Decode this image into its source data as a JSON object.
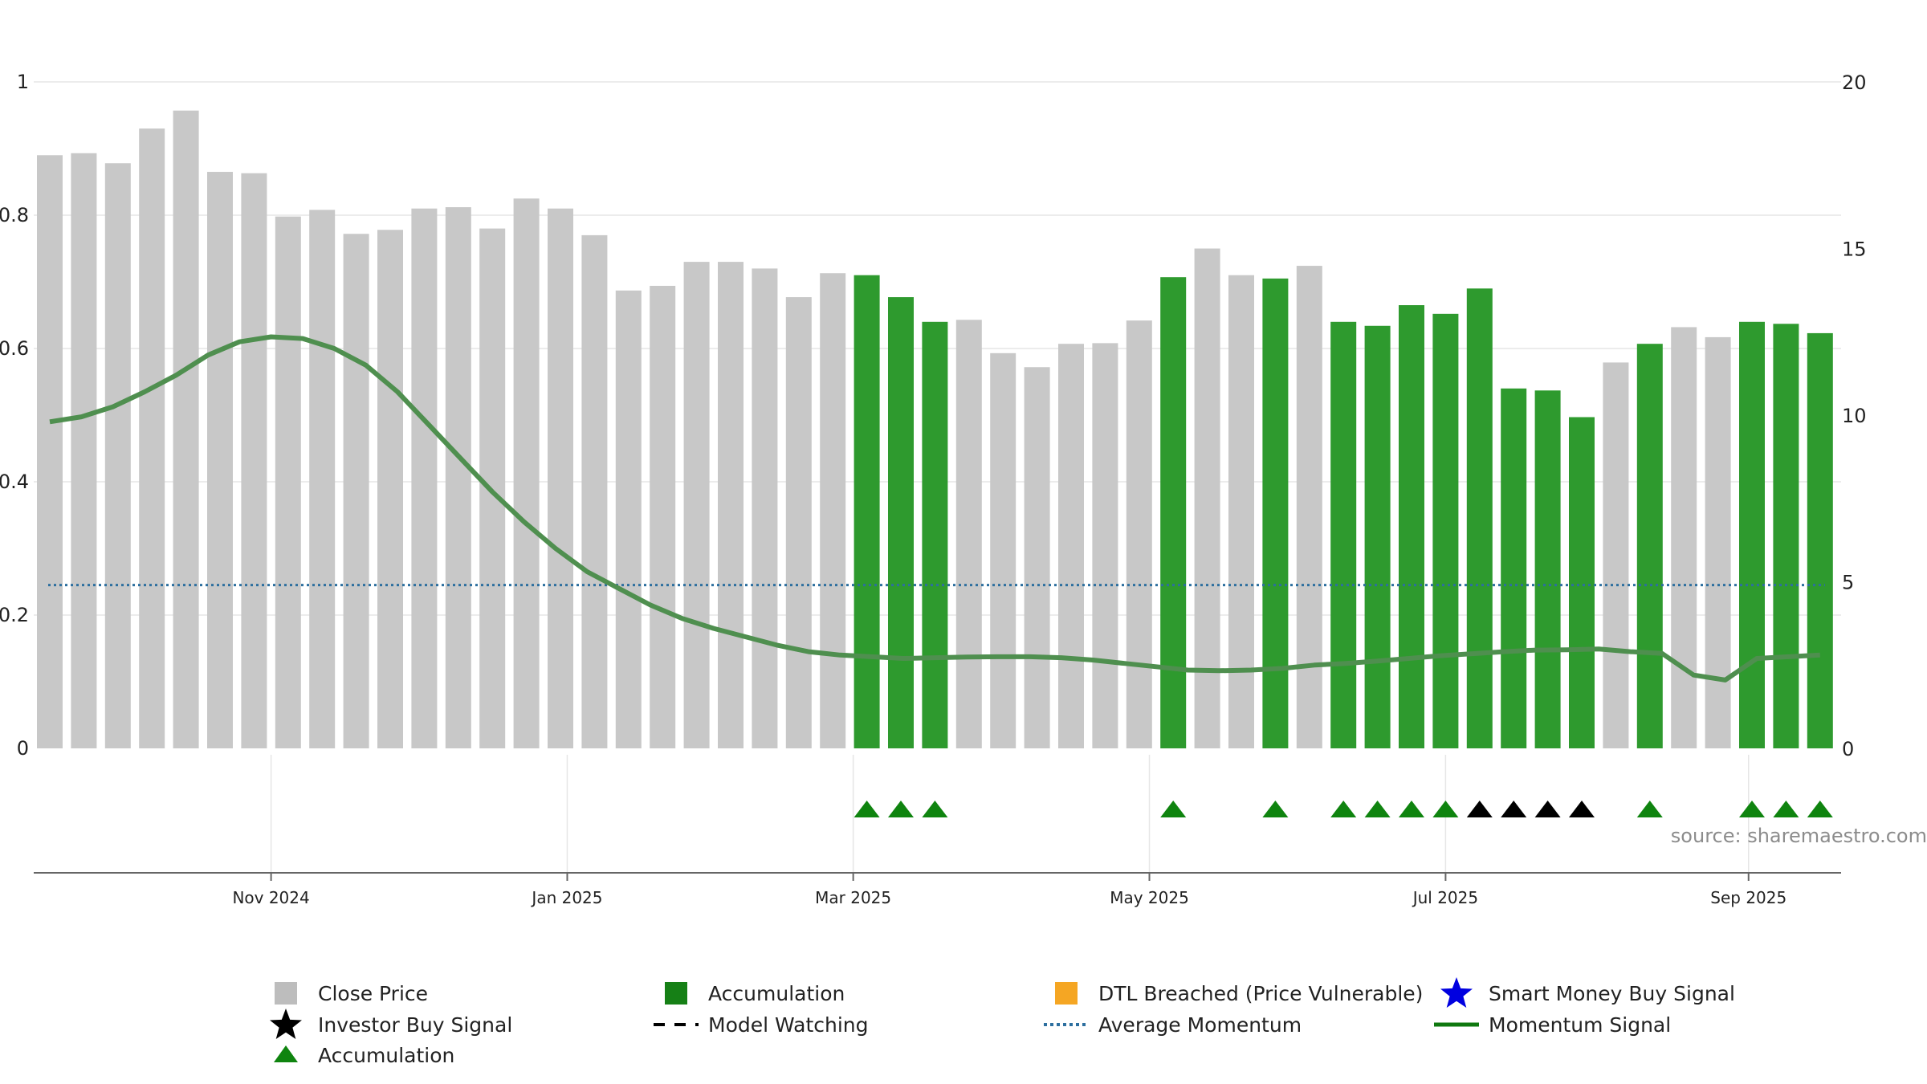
{
  "chart_data": {
    "type": "bar",
    "colors": {
      "close_bar": "#c8c8c8",
      "accumulation_bar": "#2e9a2e",
      "momentum_line": "#4f8f4f",
      "average_momentum": "#2d6f9f",
      "marker_green": "#0f840f",
      "marker_black": "#000000",
      "legend_close": "#bdbdbd",
      "legend_accum": "#168016",
      "legend_dtl": "#f5a623",
      "legend_star_blue": "#0000e0",
      "legend_momentum": "#0f780f",
      "axis": "#222222",
      "grid": "#e6e6e6",
      "source_text": "#8c8c8c"
    },
    "left_axis": {
      "ylim": [
        0,
        1
      ],
      "ticks": [
        0,
        0.2,
        0.4,
        0.6,
        0.8,
        1
      ],
      "tick_labels": [
        "0",
        "0.2",
        "0.4",
        "0.6",
        "0.8",
        "1"
      ]
    },
    "right_axis": {
      "ylim": [
        0,
        20
      ],
      "ticks": [
        0,
        5,
        10,
        15,
        20
      ],
      "tick_labels": [
        "0",
        "5",
        "10",
        "15",
        "20"
      ]
    },
    "x_ticks": [
      {
        "label": "Nov 2024",
        "index": 6.5
      },
      {
        "label": "Jan 2025",
        "index": 15.2
      },
      {
        "label": "Mar 2025",
        "index": 23.6
      },
      {
        "label": "May 2025",
        "index": 32.3
      },
      {
        "label": "Jul 2025",
        "index": 41.0
      },
      {
        "label": "Sep 2025",
        "index": 49.9
      }
    ],
    "bars": [
      {
        "value": 0.89,
        "accum": false
      },
      {
        "value": 0.893,
        "accum": false
      },
      {
        "value": 0.878,
        "accum": false
      },
      {
        "value": 0.93,
        "accum": false
      },
      {
        "value": 0.957,
        "accum": false
      },
      {
        "value": 0.865,
        "accum": false
      },
      {
        "value": 0.863,
        "accum": false
      },
      {
        "value": 0.798,
        "accum": false
      },
      {
        "value": 0.808,
        "accum": false
      },
      {
        "value": 0.772,
        "accum": false
      },
      {
        "value": 0.778,
        "accum": false
      },
      {
        "value": 0.81,
        "accum": false
      },
      {
        "value": 0.812,
        "accum": false
      },
      {
        "value": 0.78,
        "accum": false
      },
      {
        "value": 0.825,
        "accum": false
      },
      {
        "value": 0.81,
        "accum": false
      },
      {
        "value": 0.77,
        "accum": false
      },
      {
        "value": 0.687,
        "accum": false
      },
      {
        "value": 0.694,
        "accum": false
      },
      {
        "value": 0.73,
        "accum": false
      },
      {
        "value": 0.73,
        "accum": false
      },
      {
        "value": 0.72,
        "accum": false
      },
      {
        "value": 0.677,
        "accum": false
      },
      {
        "value": 0.713,
        "accum": false
      },
      {
        "value": 0.71,
        "accum": true
      },
      {
        "value": 0.677,
        "accum": true
      },
      {
        "value": 0.64,
        "accum": true
      },
      {
        "value": 0.643,
        "accum": false
      },
      {
        "value": 0.593,
        "accum": false
      },
      {
        "value": 0.572,
        "accum": false
      },
      {
        "value": 0.607,
        "accum": false
      },
      {
        "value": 0.608,
        "accum": false
      },
      {
        "value": 0.642,
        "accum": false
      },
      {
        "value": 0.707,
        "accum": true
      },
      {
        "value": 0.75,
        "accum": false
      },
      {
        "value": 0.71,
        "accum": false
      },
      {
        "value": 0.705,
        "accum": true
      },
      {
        "value": 0.724,
        "accum": false
      },
      {
        "value": 0.64,
        "accum": true
      },
      {
        "value": 0.634,
        "accum": true
      },
      {
        "value": 0.665,
        "accum": true
      },
      {
        "value": 0.652,
        "accum": true
      },
      {
        "value": 0.69,
        "accum": true
      },
      {
        "value": 0.54,
        "accum": true
      },
      {
        "value": 0.537,
        "accum": true
      },
      {
        "value": 0.497,
        "accum": true
      },
      {
        "value": 0.579,
        "accum": false
      },
      {
        "value": 0.607,
        "accum": true
      },
      {
        "value": 0.632,
        "accum": false
      },
      {
        "value": 0.617,
        "accum": false
      },
      {
        "value": 0.64,
        "accum": true
      },
      {
        "value": 0.637,
        "accum": true
      },
      {
        "value": 0.623,
        "accum": true
      }
    ],
    "momentum": [
      9.8,
      9.95,
      10.25,
      10.7,
      11.2,
      11.8,
      12.2,
      12.35,
      12.3,
      12.0,
      11.5,
      10.7,
      9.7,
      8.7,
      7.7,
      6.8,
      6.0,
      5.3,
      4.8,
      4.3,
      3.9,
      3.6,
      3.35,
      3.1,
      2.9,
      2.8,
      2.75,
      2.7,
      2.72,
      2.74,
      2.75,
      2.75,
      2.72,
      2.65,
      2.55,
      2.45,
      2.35,
      2.33,
      2.35,
      2.4,
      2.5,
      2.55,
      2.62,
      2.7,
      2.78,
      2.84,
      2.9,
      2.95,
      2.96,
      2.98,
      2.9,
      2.85,
      2.2,
      2.05,
      2.7,
      2.75,
      2.8
    ],
    "average_momentum": 4.9,
    "markers": [
      {
        "index": 24,
        "color": "green"
      },
      {
        "index": 25,
        "color": "green"
      },
      {
        "index": 26,
        "color": "green"
      },
      {
        "index": 33,
        "color": "green"
      },
      {
        "index": 36,
        "color": "green"
      },
      {
        "index": 38,
        "color": "green"
      },
      {
        "index": 39,
        "color": "green"
      },
      {
        "index": 40,
        "color": "green"
      },
      {
        "index": 41,
        "color": "green"
      },
      {
        "index": 42,
        "color": "black"
      },
      {
        "index": 43,
        "color": "black"
      },
      {
        "index": 44,
        "color": "black"
      },
      {
        "index": 45,
        "color": "black"
      },
      {
        "index": 47,
        "color": "green"
      },
      {
        "index": 50,
        "color": "green"
      },
      {
        "index": 51,
        "color": "green"
      },
      {
        "index": 52,
        "color": "green"
      }
    ],
    "source": "source: sharemaestro.com",
    "legend": [
      {
        "label": "Close Price",
        "symbol": "square-grey"
      },
      {
        "label": "Accumulation",
        "symbol": "square-green"
      },
      {
        "label": "DTL Breached (Price Vulnerable)",
        "symbol": "square-orange"
      },
      {
        "label": "Smart Money Buy Signal",
        "symbol": "star-blue"
      },
      {
        "label": "Investor Buy Signal",
        "symbol": "star-black"
      },
      {
        "label": "Model Watching",
        "symbol": "dashed-black"
      },
      {
        "label": "Average Momentum",
        "symbol": "dotted-blue"
      },
      {
        "label": "Momentum Signal",
        "symbol": "line-green"
      },
      {
        "label": "Accumulation",
        "symbol": "triangle-green"
      }
    ]
  }
}
